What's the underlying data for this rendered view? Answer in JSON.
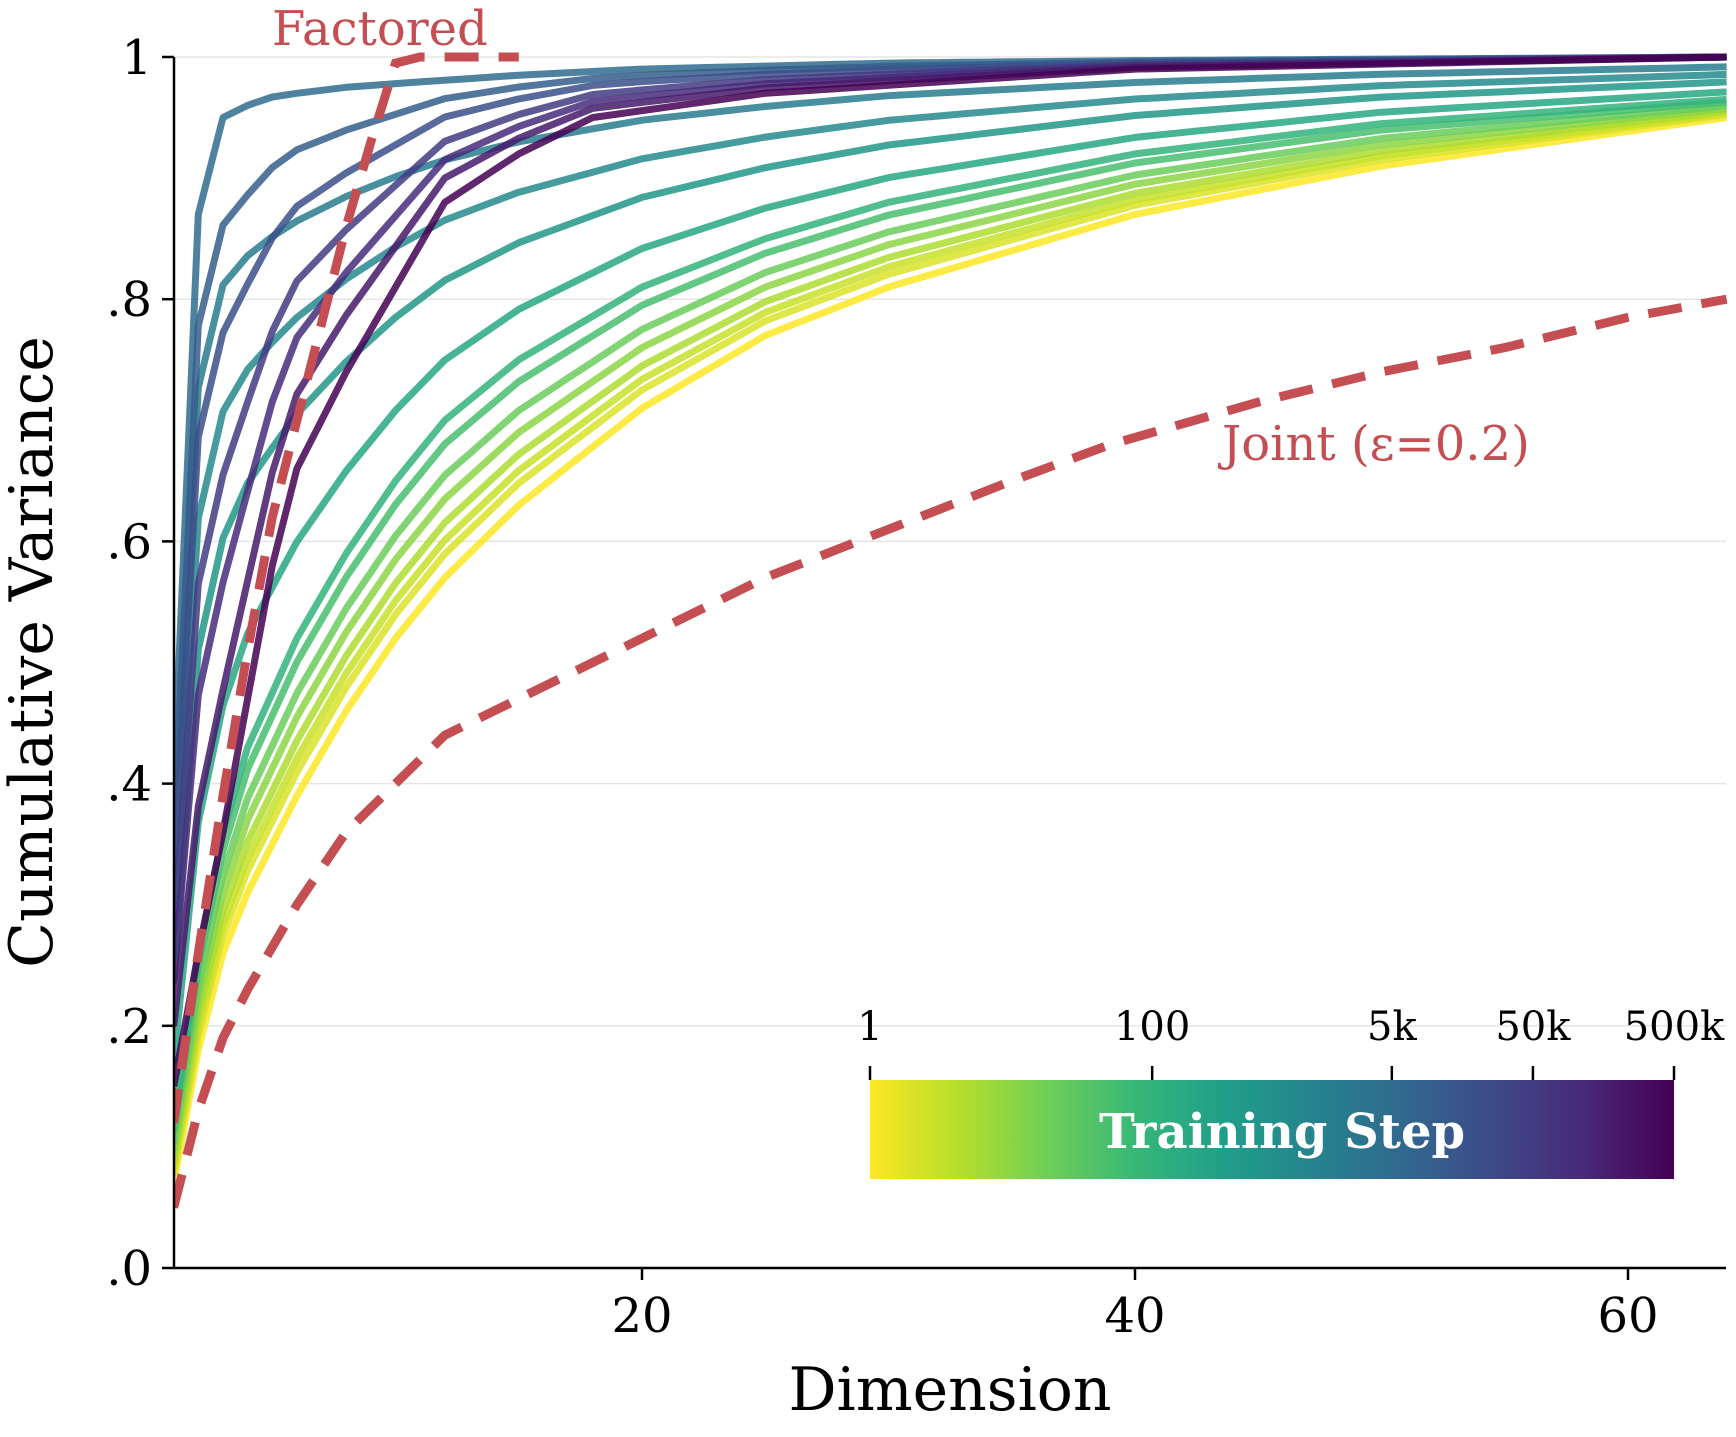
{
  "chart_data": {
    "type": "line",
    "xlabel": "Dimension",
    "ylabel": "Cumulative Variance",
    "xlim": [
      1,
      64
    ],
    "ylim": [
      0,
      1
    ],
    "x_ticks": [
      20,
      40,
      60
    ],
    "x_tick_labels": [
      "20",
      "40",
      "60"
    ],
    "y_ticks": [
      0,
      0.2,
      0.4,
      0.6,
      0.8,
      1
    ],
    "y_tick_labels": [
      ".0",
      ".2",
      ".4",
      ".6",
      ".8",
      "1"
    ],
    "grid": "horizontal",
    "reference_series": [
      {
        "name": "Factored",
        "style": "dashed",
        "color": "#c44e52",
        "x": [
          1,
          2,
          3,
          4,
          5,
          6,
          7,
          8,
          9,
          10,
          11,
          15
        ],
        "y": [
          0.12,
          0.26,
          0.39,
          0.51,
          0.62,
          0.7,
          0.78,
          0.86,
          0.93,
          0.995,
          1.0,
          1.0
        ]
      },
      {
        "name": "Joint (ε=0.2)",
        "style": "dashed",
        "color": "#c44e52",
        "x": [
          1,
          2,
          3,
          4,
          6,
          8,
          10,
          12,
          14,
          16,
          20,
          25,
          30,
          35,
          39,
          45,
          50,
          55,
          60,
          64
        ],
        "y": [
          0.05,
          0.13,
          0.19,
          0.23,
          0.3,
          0.36,
          0.4,
          0.44,
          0.46,
          0.48,
          0.52,
          0.57,
          0.61,
          0.65,
          0.68,
          0.715,
          0.74,
          0.76,
          0.785,
          0.8
        ]
      }
    ],
    "training_curves": {
      "description_colorscale": "viridis",
      "steps": [
        1,
        2,
        3,
        5,
        10,
        20,
        50,
        100,
        200,
        500,
        1000,
        2000,
        5000,
        10000,
        20000,
        50000,
        100000,
        200000,
        500000
      ],
      "representative": [
        {
          "step": 1,
          "x": [
            1,
            2,
            3,
            4,
            6,
            8,
            10,
            12,
            15,
            20,
            25,
            30,
            40,
            50,
            64
          ],
          "y": [
            0.07,
            0.18,
            0.26,
            0.31,
            0.39,
            0.46,
            0.52,
            0.57,
            0.63,
            0.71,
            0.77,
            0.81,
            0.87,
            0.91,
            0.95
          ]
        },
        {
          "step": 100,
          "x": [
            1,
            2,
            3,
            4,
            6,
            8,
            10,
            12,
            15,
            20,
            25,
            30,
            40,
            50,
            64
          ],
          "y": [
            0.12,
            0.26,
            0.36,
            0.43,
            0.52,
            0.59,
            0.65,
            0.7,
            0.75,
            0.81,
            0.85,
            0.88,
            0.92,
            0.945,
            0.965
          ]
        },
        {
          "step": 5000,
          "x": [
            1,
            2,
            3,
            4,
            5,
            6,
            8,
            10,
            15,
            20,
            30,
            40,
            64
          ],
          "y": [
            0.4,
            0.87,
            0.95,
            0.96,
            0.967,
            0.97,
            0.975,
            0.978,
            0.985,
            0.99,
            0.995,
            0.997,
            1.0
          ]
        },
        {
          "step": 500000,
          "x": [
            1,
            2,
            3,
            4,
            5,
            6,
            8,
            10,
            12,
            15,
            18,
            25,
            40,
            64
          ],
          "y": [
            0.15,
            0.26,
            0.36,
            0.47,
            0.58,
            0.66,
            0.74,
            0.81,
            0.88,
            0.92,
            0.95,
            0.97,
            0.99,
            1.0
          ]
        }
      ]
    },
    "colorbar": {
      "title": "Training Step",
      "tick_labels": [
        "1",
        "100",
        "5k",
        "50k",
        "500k"
      ],
      "tick_steps": [
        1,
        100,
        5000,
        50000,
        500000
      ],
      "scale": "log",
      "colors": [
        "#fde725",
        "#b5de2b",
        "#6ece58",
        "#35b779",
        "#1f9e89",
        "#26828e",
        "#31688e",
        "#3e4989",
        "#482878",
        "#440154"
      ]
    },
    "colors": {
      "reference": "#c44e52",
      "grid": "#e5e5e5",
      "axis": "#000000"
    }
  }
}
